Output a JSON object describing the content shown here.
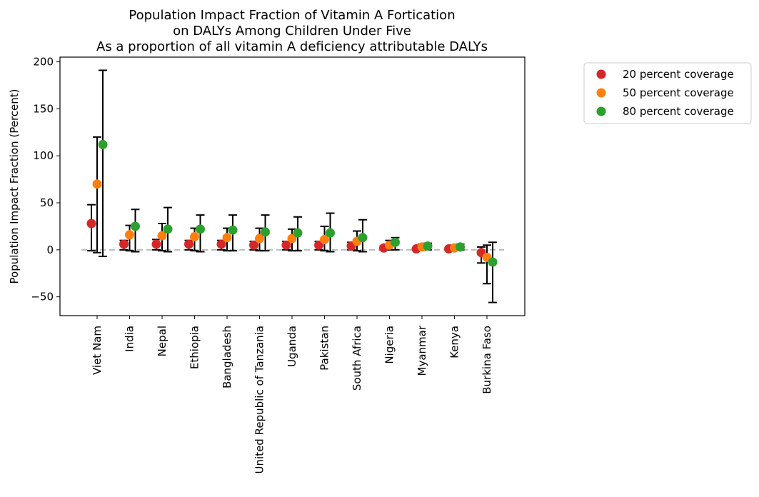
{
  "chart_data": {
    "type": "scatter",
    "title": [
      "Population Impact Fraction of Vitamin A Fortication",
      "on DALYs Among Children Under Five",
      "As a proportion of all vitamin A deficiency attributable DALYs"
    ],
    "ylabel": "Population Impact Fraction (Percent)",
    "xlabel": "",
    "ylim": [
      -70,
      205
    ],
    "yticks": [
      -50,
      0,
      50,
      100,
      150,
      200
    ],
    "categories": [
      "Viet Nam",
      "India",
      "Nepal",
      "Ethiopia",
      "Bangladesh",
      "United Republic of Tanzania",
      "Uganda",
      "Pakistan",
      "South Africa",
      "Nigeria",
      "Myanmar",
      "Kenya",
      "Burkina Faso"
    ],
    "reference_line": 0,
    "legend_position": "outside-right",
    "series": [
      {
        "name": "20 percent coverage",
        "color": "#d62728",
        "values": [
          28,
          6,
          6,
          6,
          6,
          5,
          5,
          5,
          4,
          2,
          1,
          1,
          -3
        ],
        "lower": [
          -1,
          0,
          0,
          0,
          0,
          0,
          0,
          0,
          0,
          0,
          0,
          0,
          -14
        ],
        "upper": [
          48,
          10,
          11,
          10,
          10,
          9,
          9,
          9,
          8,
          4,
          2,
          2,
          3
        ]
      },
      {
        "name": "50 percent coverage",
        "color": "#ff7f0e",
        "values": [
          70,
          16,
          15,
          14,
          13,
          12,
          12,
          11,
          9,
          5,
          3,
          2,
          -8
        ],
        "lower": [
          -3,
          -1,
          -1,
          -1,
          -1,
          -1,
          -1,
          -1,
          -1,
          0,
          0,
          0,
          -36
        ],
        "upper": [
          120,
          26,
          28,
          23,
          23,
          23,
          22,
          25,
          20,
          10,
          6,
          5,
          5
        ]
      },
      {
        "name": "80 percent coverage",
        "color": "#2ca02c",
        "values": [
          112,
          25,
          22,
          22,
          21,
          19,
          18,
          18,
          13,
          8,
          4,
          3,
          -13
        ],
        "lower": [
          -7,
          -2,
          -2,
          -2,
          -1,
          -1,
          -1,
          -2,
          -2,
          0,
          0,
          0,
          -56
        ],
        "upper": [
          191,
          43,
          45,
          37,
          37,
          37,
          35,
          39,
          32,
          13,
          7,
          6,
          8
        ]
      }
    ]
  }
}
